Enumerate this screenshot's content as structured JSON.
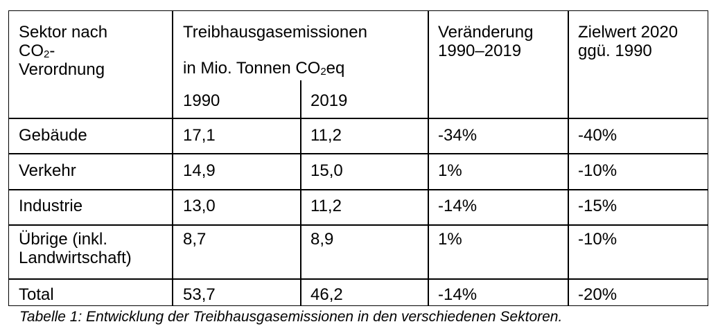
{
  "table": {
    "header": {
      "sector": [
        "Sektor nach",
        "CO",
        "2",
        "-",
        "Verordnung"
      ],
      "emissions": [
        "Treibhausgasemissionen",
        "in Mio. Tonnen CO",
        "2",
        "eq"
      ],
      "year1": "1990",
      "year2": "2019",
      "change": [
        "Veränderung",
        "1990–2019"
      ],
      "target": [
        "Zielwert 2020",
        "ggü. 1990"
      ]
    },
    "rows": [
      {
        "sector": [
          "Gebäude"
        ],
        "v1990": "17,1",
        "v2019": "11,2",
        "change": "-34%",
        "target": "-40%"
      },
      {
        "sector": [
          "Verkehr"
        ],
        "v1990": "14,9",
        "v2019": "15,0",
        "change": "1%",
        "target": "-10%"
      },
      {
        "sector": [
          "Industrie"
        ],
        "v1990": "13,0",
        "v2019": "11,2",
        "change": "-14%",
        "target": "-15%"
      },
      {
        "sector": [
          "Übrige (inkl.",
          "Landwirtschaft)"
        ],
        "v1990": "8,7",
        "v2019": "8,9",
        "change": "1%",
        "target": "-10%"
      },
      {
        "sector": [
          "Total"
        ],
        "v1990": "53,7",
        "v2019": "46,2",
        "change": "-14%",
        "target": "-20%"
      }
    ]
  },
  "caption": "Tabelle 1: Entwicklung der Treibhausgasemissionen in den verschiedenen Sektoren."
}
